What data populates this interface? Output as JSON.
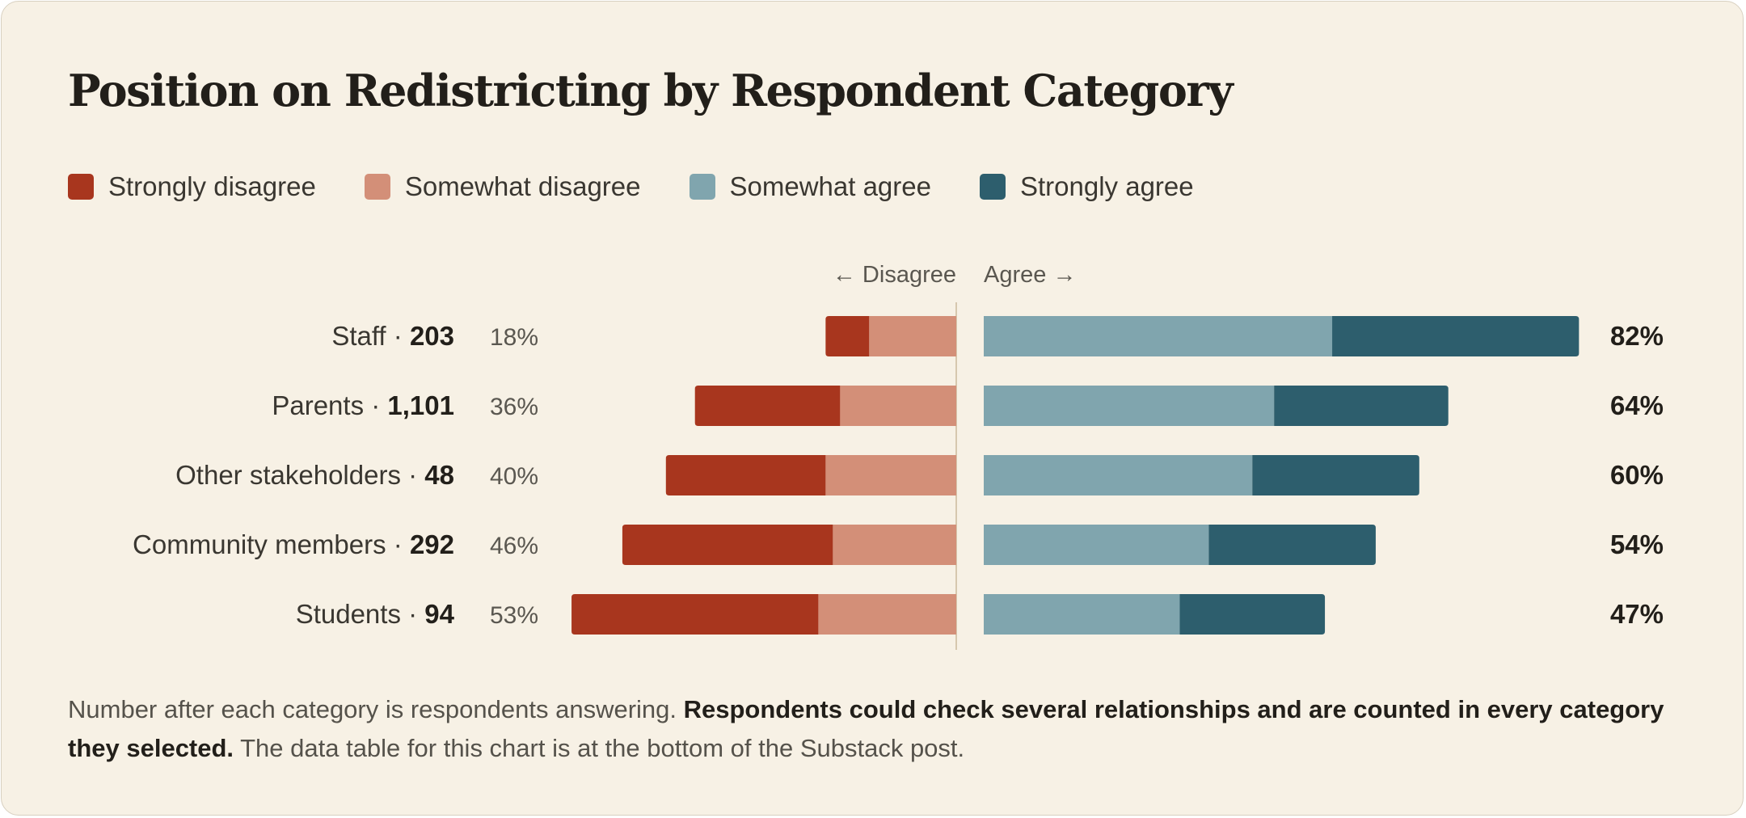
{
  "title": "Position on Redistricting by Respondent Category",
  "legend": [
    {
      "label": "Strongly disagree",
      "color": "#a8361e"
    },
    {
      "label": "Somewhat disagree",
      "color": "#d38f78"
    },
    {
      "label": "Somewhat agree",
      "color": "#80a5ae"
    },
    {
      "label": "Strongly agree",
      "color": "#2d5e6d"
    }
  ],
  "footnote": {
    "part1": "Number after each category is respondents answering. ",
    "bold": "Respondents could check several relationships and are counted in every category they selected.",
    "part2": " The data table for this chart is at the bottom of the Substack post."
  },
  "chart_data": {
    "type": "bar",
    "axis_labels": {
      "left": "← Disagree",
      "right": "Agree →"
    },
    "categories": [
      {
        "name": "Staff",
        "n": "203",
        "disagree_label": "18%",
        "agree_label": "82%"
      },
      {
        "name": "Parents",
        "n": "1,101",
        "disagree_label": "36%",
        "agree_label": "64%"
      },
      {
        "name": "Other stakeholders",
        "n": "48",
        "disagree_label": "40%",
        "agree_label": "60%"
      },
      {
        "name": "Community members",
        "n": "292",
        "disagree_label": "46%",
        "agree_label": "54%"
      },
      {
        "name": "Students",
        "n": "94",
        "disagree_label": "53%",
        "agree_label": "47%"
      }
    ],
    "series": [
      {
        "name": "Strongly disagree",
        "values": [
          6,
          20,
          22,
          29,
          34
        ]
      },
      {
        "name": "Somewhat disagree",
        "values": [
          12,
          16,
          18,
          17,
          19
        ]
      },
      {
        "name": "Somewhat agree",
        "values": [
          48,
          40,
          37,
          31,
          27
        ]
      },
      {
        "name": "Strongly agree",
        "values": [
          34,
          24,
          23,
          23,
          20
        ]
      }
    ],
    "xlim": [
      -100,
      100
    ]
  }
}
